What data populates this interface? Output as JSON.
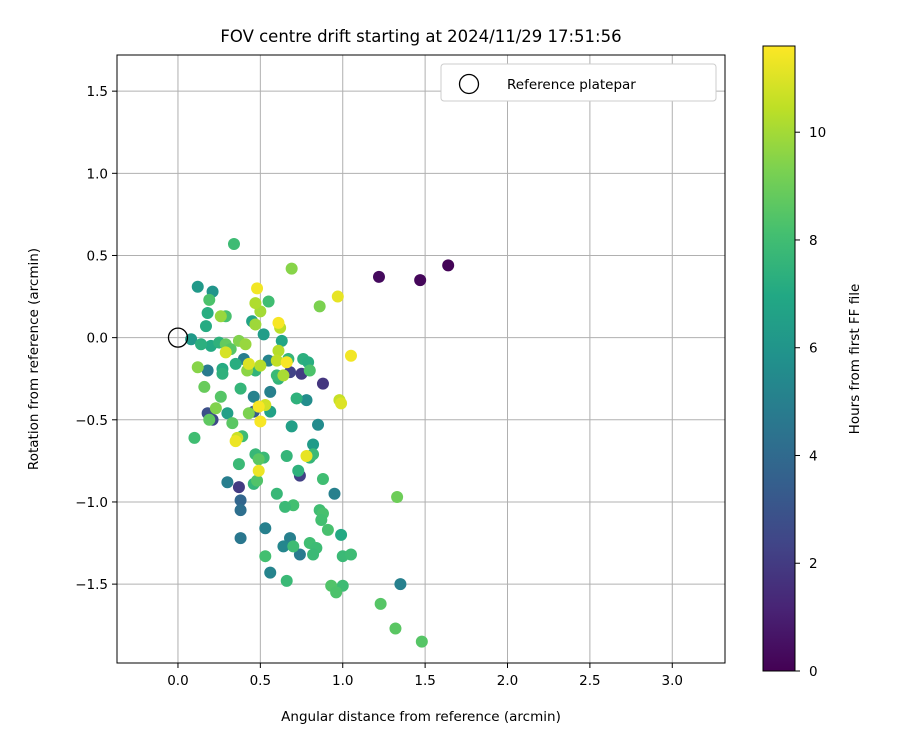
{
  "chart_data": {
    "type": "scatter",
    "title": "FOV centre drift starting at 2024/11/29 17:51:56",
    "xlabel": "Angular distance from reference (arcmin)",
    "ylabel": "Rotation from reference (arcmin)",
    "xlim": [
      -0.37,
      3.32
    ],
    "ylim": [
      -1.98,
      1.72
    ],
    "xticks": [
      0.0,
      0.5,
      1.0,
      1.5,
      2.0,
      2.5,
      3.0
    ],
    "xtick_labels": [
      "0.0",
      "0.5",
      "1.0",
      "1.5",
      "2.0",
      "2.5",
      "3.0"
    ],
    "yticks": [
      1.5,
      1.0,
      0.5,
      0.0,
      -0.5,
      -1.0,
      -1.5
    ],
    "ytick_labels": [
      "1.5",
      "1.0",
      "0.5",
      "0.0",
      "−0.5",
      "−1.0",
      "−1.5"
    ],
    "grid": true,
    "legend": {
      "position": "top-right",
      "entries": [
        "Reference platepar"
      ]
    },
    "colorbar": {
      "label": "Hours from first FF file",
      "colormap": "viridis",
      "range": [
        0,
        11.6
      ],
      "ticks": [
        0,
        2,
        4,
        6,
        8,
        10
      ],
      "tick_labels": [
        "0",
        "2",
        "4",
        "6",
        "8",
        "10"
      ]
    },
    "reference_point": {
      "x": 0.0,
      "y": 0.0
    },
    "points": [
      {
        "x": 1.64,
        "y": 0.44,
        "h": 0.1
      },
      {
        "x": 1.47,
        "y": 0.35,
        "h": 0.2
      },
      {
        "x": 1.22,
        "y": 0.37,
        "h": 0.3
      },
      {
        "x": 0.88,
        "y": -0.28,
        "h": 1.8
      },
      {
        "x": 0.75,
        "y": -0.22,
        "h": 2.0
      },
      {
        "x": 0.68,
        "y": -0.21,
        "h": 2.3
      },
      {
        "x": 0.74,
        "y": -0.84,
        "h": 2.2
      },
      {
        "x": 0.37,
        "y": -0.91,
        "h": 2.0
      },
      {
        "x": 0.21,
        "y": -0.5,
        "h": 2.5
      },
      {
        "x": 0.18,
        "y": -0.46,
        "h": 2.8
      },
      {
        "x": 0.46,
        "y": -0.45,
        "h": 3.3
      },
      {
        "x": 0.38,
        "y": -0.99,
        "h": 3.8
      },
      {
        "x": 0.38,
        "y": -1.05,
        "h": 4.2
      },
      {
        "x": 0.38,
        "y": -1.22,
        "h": 4.6
      },
      {
        "x": 0.3,
        "y": -0.88,
        "h": 4.9
      },
      {
        "x": 0.53,
        "y": -1.16,
        "h": 5.0
      },
      {
        "x": 0.56,
        "y": -1.43,
        "h": 5.2
      },
      {
        "x": 0.68,
        "y": -1.22,
        "h": 5.0
      },
      {
        "x": 0.74,
        "y": -1.32,
        "h": 4.8
      },
      {
        "x": 0.64,
        "y": -1.27,
        "h": 5.3
      },
      {
        "x": 0.95,
        "y": -0.95,
        "h": 5.0
      },
      {
        "x": 1.35,
        "y": -1.5,
        "h": 5.0
      },
      {
        "x": 0.85,
        "y": -0.53,
        "h": 5.5
      },
      {
        "x": 0.78,
        "y": -0.38,
        "h": 5.6
      },
      {
        "x": 0.56,
        "y": -0.33,
        "h": 5.0
      },
      {
        "x": 0.46,
        "y": -0.36,
        "h": 5.1
      },
      {
        "x": 0.4,
        "y": -0.13,
        "h": 4.9
      },
      {
        "x": 0.55,
        "y": -0.14,
        "h": 5.2
      },
      {
        "x": 0.18,
        "y": -0.2,
        "h": 4.8
      },
      {
        "x": 0.12,
        "y": 0.31,
        "h": 6.2
      },
      {
        "x": 0.21,
        "y": 0.28,
        "h": 6.0
      },
      {
        "x": 0.08,
        "y": -0.01,
        "h": 6.2
      },
      {
        "x": 0.3,
        "y": -0.46,
        "h": 6.5
      },
      {
        "x": 0.56,
        "y": -0.45,
        "h": 6.6
      },
      {
        "x": 0.69,
        "y": -0.54,
        "h": 6.5
      },
      {
        "x": 0.82,
        "y": -0.65,
        "h": 6.3
      },
      {
        "x": 0.45,
        "y": 0.1,
        "h": 6.7
      },
      {
        "x": 0.52,
        "y": 0.02,
        "h": 6.4
      },
      {
        "x": 0.63,
        "y": -0.02,
        "h": 6.8
      },
      {
        "x": 0.18,
        "y": 0.15,
        "h": 7.2
      },
      {
        "x": 0.17,
        "y": 0.07,
        "h": 7.1
      },
      {
        "x": 0.2,
        "y": -0.05,
        "h": 7.0
      },
      {
        "x": 0.25,
        "y": -0.03,
        "h": 7.4
      },
      {
        "x": 0.14,
        "y": -0.04,
        "h": 7.3
      },
      {
        "x": 0.27,
        "y": -0.19,
        "h": 7.1
      },
      {
        "x": 0.35,
        "y": -0.16,
        "h": 7.2
      },
      {
        "x": 0.38,
        "y": -0.31,
        "h": 7.6
      },
      {
        "x": 0.61,
        "y": -0.25,
        "h": 7.5
      },
      {
        "x": 0.47,
        "y": -0.2,
        "h": 7.5
      },
      {
        "x": 0.72,
        "y": -0.37,
        "h": 7.4
      },
      {
        "x": 0.76,
        "y": -0.13,
        "h": 7.3
      },
      {
        "x": 0.79,
        "y": -0.15,
        "h": 7.2
      },
      {
        "x": 0.67,
        "y": -0.13,
        "h": 7.6
      },
      {
        "x": 0.6,
        "y": -0.23,
        "h": 7.8
      },
      {
        "x": 0.27,
        "y": -0.22,
        "h": 7.4
      },
      {
        "x": 0.34,
        "y": 0.57,
        "h": 7.9
      },
      {
        "x": 0.55,
        "y": 0.22,
        "h": 8.0
      },
      {
        "x": 0.1,
        "y": -0.61,
        "h": 8.0
      },
      {
        "x": 0.39,
        "y": -0.6,
        "h": 7.9
      },
      {
        "x": 0.37,
        "y": -0.77,
        "h": 7.8
      },
      {
        "x": 0.47,
        "y": -0.71,
        "h": 7.7
      },
      {
        "x": 0.52,
        "y": -0.73,
        "h": 7.8
      },
      {
        "x": 0.46,
        "y": -0.89,
        "h": 7.6
      },
      {
        "x": 0.6,
        "y": -0.95,
        "h": 7.7
      },
      {
        "x": 0.66,
        "y": -0.72,
        "h": 7.6
      },
      {
        "x": 0.73,
        "y": -0.81,
        "h": 7.4
      },
      {
        "x": 0.8,
        "y": -0.73,
        "h": 7.6
      },
      {
        "x": 0.82,
        "y": -0.71,
        "h": 7.8
      },
      {
        "x": 0.88,
        "y": -0.86,
        "h": 8.0
      },
      {
        "x": 0.7,
        "y": -1.02,
        "h": 8.1
      },
      {
        "x": 0.65,
        "y": -1.03,
        "h": 7.8
      },
      {
        "x": 0.86,
        "y": -1.05,
        "h": 8.0
      },
      {
        "x": 0.88,
        "y": -1.07,
        "h": 8.2
      },
      {
        "x": 0.87,
        "y": -1.11,
        "h": 8.1
      },
      {
        "x": 0.91,
        "y": -1.17,
        "h": 8.2
      },
      {
        "x": 0.8,
        "y": -1.25,
        "h": 8.0
      },
      {
        "x": 0.84,
        "y": -1.28,
        "h": 7.9
      },
      {
        "x": 0.82,
        "y": -1.32,
        "h": 7.8
      },
      {
        "x": 0.7,
        "y": -1.27,
        "h": 7.9
      },
      {
        "x": 0.53,
        "y": -1.33,
        "h": 8.1
      },
      {
        "x": 0.66,
        "y": -1.48,
        "h": 7.8
      },
      {
        "x": 0.99,
        "y": -1.2,
        "h": 7.0
      },
      {
        "x": 1.0,
        "y": -1.33,
        "h": 7.8
      },
      {
        "x": 1.05,
        "y": -1.32,
        "h": 7.9
      },
      {
        "x": 1.0,
        "y": -1.51,
        "h": 7.9
      },
      {
        "x": 0.93,
        "y": -1.51,
        "h": 8.4
      },
      {
        "x": 0.96,
        "y": -1.55,
        "h": 8.3
      },
      {
        "x": 1.23,
        "y": -1.62,
        "h": 8.5
      },
      {
        "x": 1.32,
        "y": -1.77,
        "h": 8.6
      },
      {
        "x": 1.48,
        "y": -1.85,
        "h": 8.5
      },
      {
        "x": 1.33,
        "y": -0.97,
        "h": 9.0
      },
      {
        "x": 0.16,
        "y": -0.3,
        "h": 8.9
      },
      {
        "x": 0.26,
        "y": -0.36,
        "h": 8.5
      },
      {
        "x": 0.33,
        "y": -0.52,
        "h": 8.6
      },
      {
        "x": 0.19,
        "y": -0.5,
        "h": 8.7
      },
      {
        "x": 0.49,
        "y": -0.74,
        "h": 8.6
      },
      {
        "x": 0.48,
        "y": -0.87,
        "h": 8.4
      },
      {
        "x": 0.29,
        "y": -0.04,
        "h": 8.8
      },
      {
        "x": 0.32,
        "y": -0.07,
        "h": 8.5
      },
      {
        "x": 0.19,
        "y": 0.23,
        "h": 8.3
      },
      {
        "x": 0.29,
        "y": 0.13,
        "h": 8.2
      },
      {
        "x": 0.8,
        "y": -0.2,
        "h": 8.3
      },
      {
        "x": 0.86,
        "y": 0.19,
        "h": 9.3
      },
      {
        "x": 0.69,
        "y": 0.42,
        "h": 9.5
      },
      {
        "x": 0.12,
        "y": -0.18,
        "h": 9.5
      },
      {
        "x": 0.23,
        "y": -0.43,
        "h": 9.4
      },
      {
        "x": 0.43,
        "y": -0.46,
        "h": 9.3
      },
      {
        "x": 0.42,
        "y": -0.2,
        "h": 9.6
      },
      {
        "x": 0.37,
        "y": -0.02,
        "h": 9.4
      },
      {
        "x": 0.26,
        "y": 0.13,
        "h": 9.8
      },
      {
        "x": 0.41,
        "y": -0.04,
        "h": 9.8
      },
      {
        "x": 0.47,
        "y": 0.08,
        "h": 9.9
      },
      {
        "x": 0.5,
        "y": 0.16,
        "h": 10.0
      },
      {
        "x": 0.47,
        "y": 0.21,
        "h": 10.2
      },
      {
        "x": 0.62,
        "y": 0.06,
        "h": 10.4
      },
      {
        "x": 0.61,
        "y": -0.08,
        "h": 10.3
      },
      {
        "x": 0.6,
        "y": -0.14,
        "h": 10.5
      },
      {
        "x": 0.5,
        "y": -0.17,
        "h": 10.3
      },
      {
        "x": 0.64,
        "y": -0.23,
        "h": 10.1
      },
      {
        "x": 0.98,
        "y": -0.38,
        "h": 10.6
      },
      {
        "x": 0.53,
        "y": -0.41,
        "h": 10.8
      },
      {
        "x": 0.36,
        "y": -0.61,
        "h": 10.7
      },
      {
        "x": 0.29,
        "y": -0.09,
        "h": 10.9
      },
      {
        "x": 0.43,
        "y": -0.16,
        "h": 11.0
      },
      {
        "x": 0.99,
        "y": -0.4,
        "h": 11.0
      },
      {
        "x": 0.97,
        "y": 0.25,
        "h": 11.2
      },
      {
        "x": 0.48,
        "y": 0.3,
        "h": 11.4
      },
      {
        "x": 0.61,
        "y": 0.09,
        "h": 11.5
      },
      {
        "x": 1.05,
        "y": -0.11,
        "h": 11.4
      },
      {
        "x": 0.35,
        "y": -0.63,
        "h": 11.3
      },
      {
        "x": 0.49,
        "y": -0.42,
        "h": 11.5
      },
      {
        "x": 0.5,
        "y": -0.51,
        "h": 11.5
      },
      {
        "x": 0.49,
        "y": -0.81,
        "h": 11.3
      },
      {
        "x": 0.78,
        "y": -0.72,
        "h": 11.2
      },
      {
        "x": 0.66,
        "y": -0.15,
        "h": 11.5
      }
    ]
  }
}
